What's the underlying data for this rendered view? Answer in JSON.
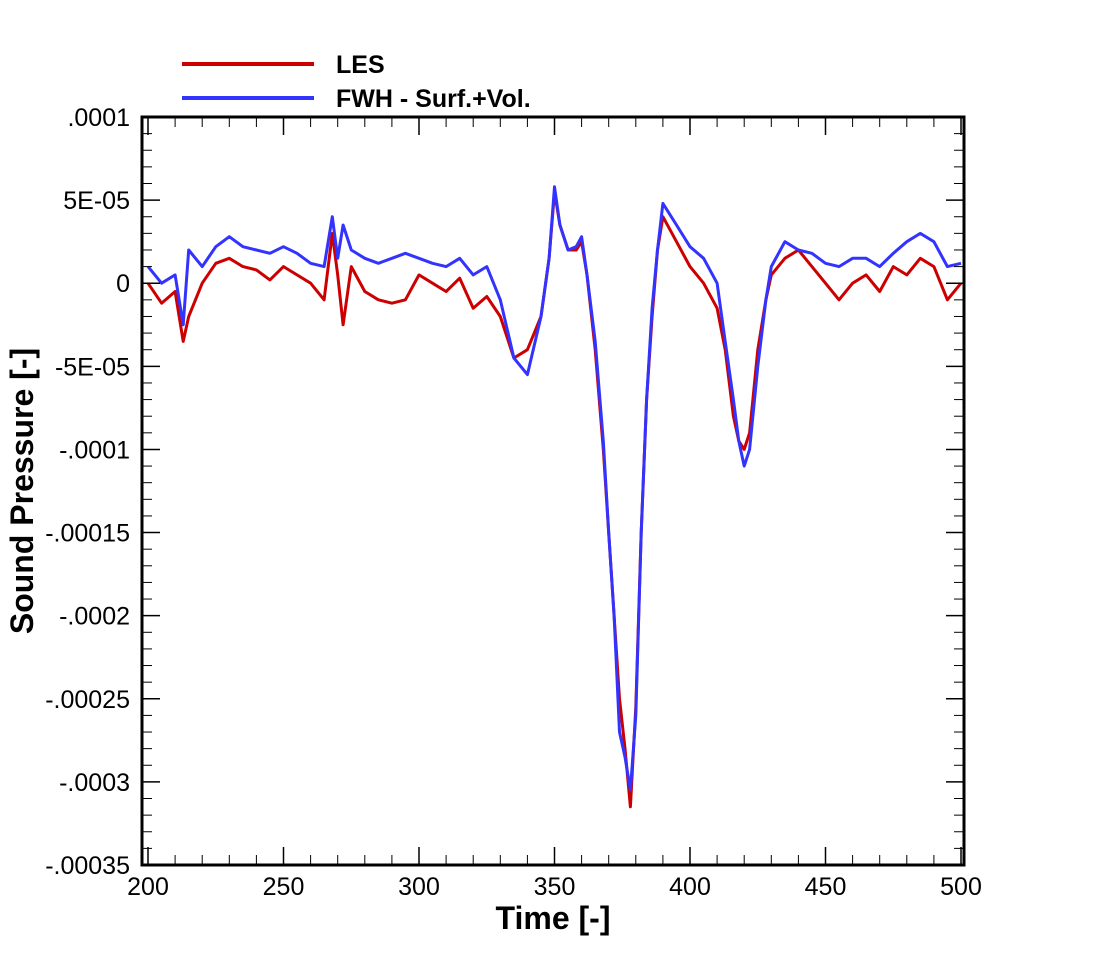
{
  "chart_data": {
    "type": "line",
    "title": "",
    "xlabel": "Time [-]",
    "ylabel": "Sound Pressure [-]",
    "xlim": [
      200,
      500
    ],
    "ylim": [
      -0.00035,
      0.0001
    ],
    "x_ticks": [
      200,
      250,
      300,
      350,
      400,
      450,
      500
    ],
    "x_tick_labels": [
      "200",
      "250",
      "300",
      "350",
      "400",
      "450",
      "500"
    ],
    "y_ticks": [
      0.0001,
      5e-05,
      0,
      -5e-05,
      -0.0001,
      -0.00015,
      -0.0002,
      -0.00025,
      -0.0003,
      -0.00035
    ],
    "y_tick_labels": [
      ".0001",
      "5E-05",
      "0",
      "-5E-05",
      "-.0001",
      "-.00015",
      "-.0002",
      "-.00025",
      "-.0003",
      "-.00035"
    ],
    "grid": false,
    "legend_position": "top-left",
    "series": [
      {
        "name": "LES",
        "color": "#cc0000",
        "x": [
          200,
          205,
          210,
          213,
          215,
          220,
          225,
          230,
          235,
          240,
          245,
          250,
          255,
          260,
          265,
          268,
          270,
          272,
          275,
          280,
          285,
          290,
          295,
          300,
          305,
          310,
          315,
          320,
          325,
          330,
          335,
          340,
          345,
          348,
          350,
          352,
          355,
          358,
          360,
          362,
          365,
          368,
          370,
          372,
          374,
          376,
          378,
          380,
          382,
          384,
          386,
          388,
          390,
          395,
          400,
          405,
          410,
          413,
          416,
          418,
          420,
          422,
          425,
          428,
          430,
          435,
          440,
          445,
          450,
          455,
          460,
          465,
          470,
          475,
          480,
          485,
          490,
          495,
          500
        ],
        "y": [
          0.0,
          -1.2e-05,
          -5e-06,
          -3.5e-05,
          -2e-05,
          0.0,
          1.2e-05,
          1.5e-05,
          1e-05,
          8e-06,
          2e-06,
          1e-05,
          5e-06,
          0.0,
          -1e-05,
          3e-05,
          5e-06,
          -2.5e-05,
          1e-05,
          -5e-06,
          -1e-05,
          -1.2e-05,
          -1e-05,
          5e-06,
          0.0,
          -5e-06,
          3e-06,
          -1.5e-05,
          -8e-06,
          -2e-05,
          -4.5e-05,
          -4e-05,
          -2e-05,
          1.5e-05,
          5.5e-05,
          3.5e-05,
          2e-05,
          2e-05,
          2.5e-05,
          5e-06,
          -4e-05,
          -0.0001,
          -0.00015,
          -0.0002,
          -0.00025,
          -0.00028,
          -0.000315,
          -0.000255,
          -0.00015,
          -7e-05,
          -2e-05,
          2e-05,
          4e-05,
          2.5e-05,
          1e-05,
          0.0,
          -1.5e-05,
          -4e-05,
          -8e-05,
          -9.5e-05,
          -0.0001,
          -9e-05,
          -4e-05,
          -1e-05,
          5e-06,
          1.5e-05,
          2e-05,
          1e-05,
          0.0,
          -1e-05,
          0.0,
          5e-06,
          -5e-06,
          1e-05,
          5e-06,
          1.5e-05,
          1e-05,
          -1e-05,
          0.0
        ]
      },
      {
        "name": "FWH - Surf.+Vol.",
        "color": "#3333ff",
        "x": [
          200,
          205,
          210,
          213,
          215,
          220,
          225,
          230,
          235,
          240,
          245,
          250,
          255,
          260,
          265,
          268,
          270,
          272,
          275,
          280,
          285,
          290,
          295,
          300,
          305,
          310,
          315,
          320,
          325,
          330,
          335,
          340,
          345,
          348,
          350,
          352,
          355,
          358,
          360,
          362,
          365,
          368,
          370,
          372,
          374,
          376,
          378,
          380,
          382,
          384,
          386,
          388,
          390,
          395,
          400,
          405,
          410,
          413,
          416,
          418,
          420,
          422,
          425,
          428,
          430,
          435,
          440,
          445,
          450,
          455,
          460,
          465,
          470,
          475,
          480,
          485,
          490,
          495,
          500
        ],
        "y": [
          1e-05,
          0.0,
          5e-06,
          -2.5e-05,
          2e-05,
          1e-05,
          2.2e-05,
          2.8e-05,
          2.2e-05,
          2e-05,
          1.8e-05,
          2.2e-05,
          1.8e-05,
          1.2e-05,
          1e-05,
          4e-05,
          1.5e-05,
          3.5e-05,
          2e-05,
          1.5e-05,
          1.2e-05,
          1.5e-05,
          1.8e-05,
          1.5e-05,
          1.2e-05,
          1e-05,
          1.5e-05,
          5e-06,
          1e-05,
          -1e-05,
          -4.5e-05,
          -5.5e-05,
          -2e-05,
          1.5e-05,
          5.8e-05,
          3.5e-05,
          2e-05,
          2.2e-05,
          2.8e-05,
          5e-06,
          -3.5e-05,
          -9.5e-05,
          -0.00015,
          -0.0002,
          -0.00027,
          -0.000285,
          -0.000305,
          -0.00026,
          -0.00015,
          -7e-05,
          -1.5e-05,
          2e-05,
          4.8e-05,
          3.5e-05,
          2.2e-05,
          1.5e-05,
          0.0,
          -3.5e-05,
          -7e-05,
          -9.5e-05,
          -0.00011,
          -0.0001,
          -5e-05,
          -1e-05,
          1e-05,
          2.5e-05,
          2e-05,
          1.8e-05,
          1.2e-05,
          1e-05,
          1.5e-05,
          1.5e-05,
          1e-05,
          1.8e-05,
          2.5e-05,
          3e-05,
          2.5e-05,
          1e-05,
          1.2e-05
        ]
      }
    ]
  }
}
